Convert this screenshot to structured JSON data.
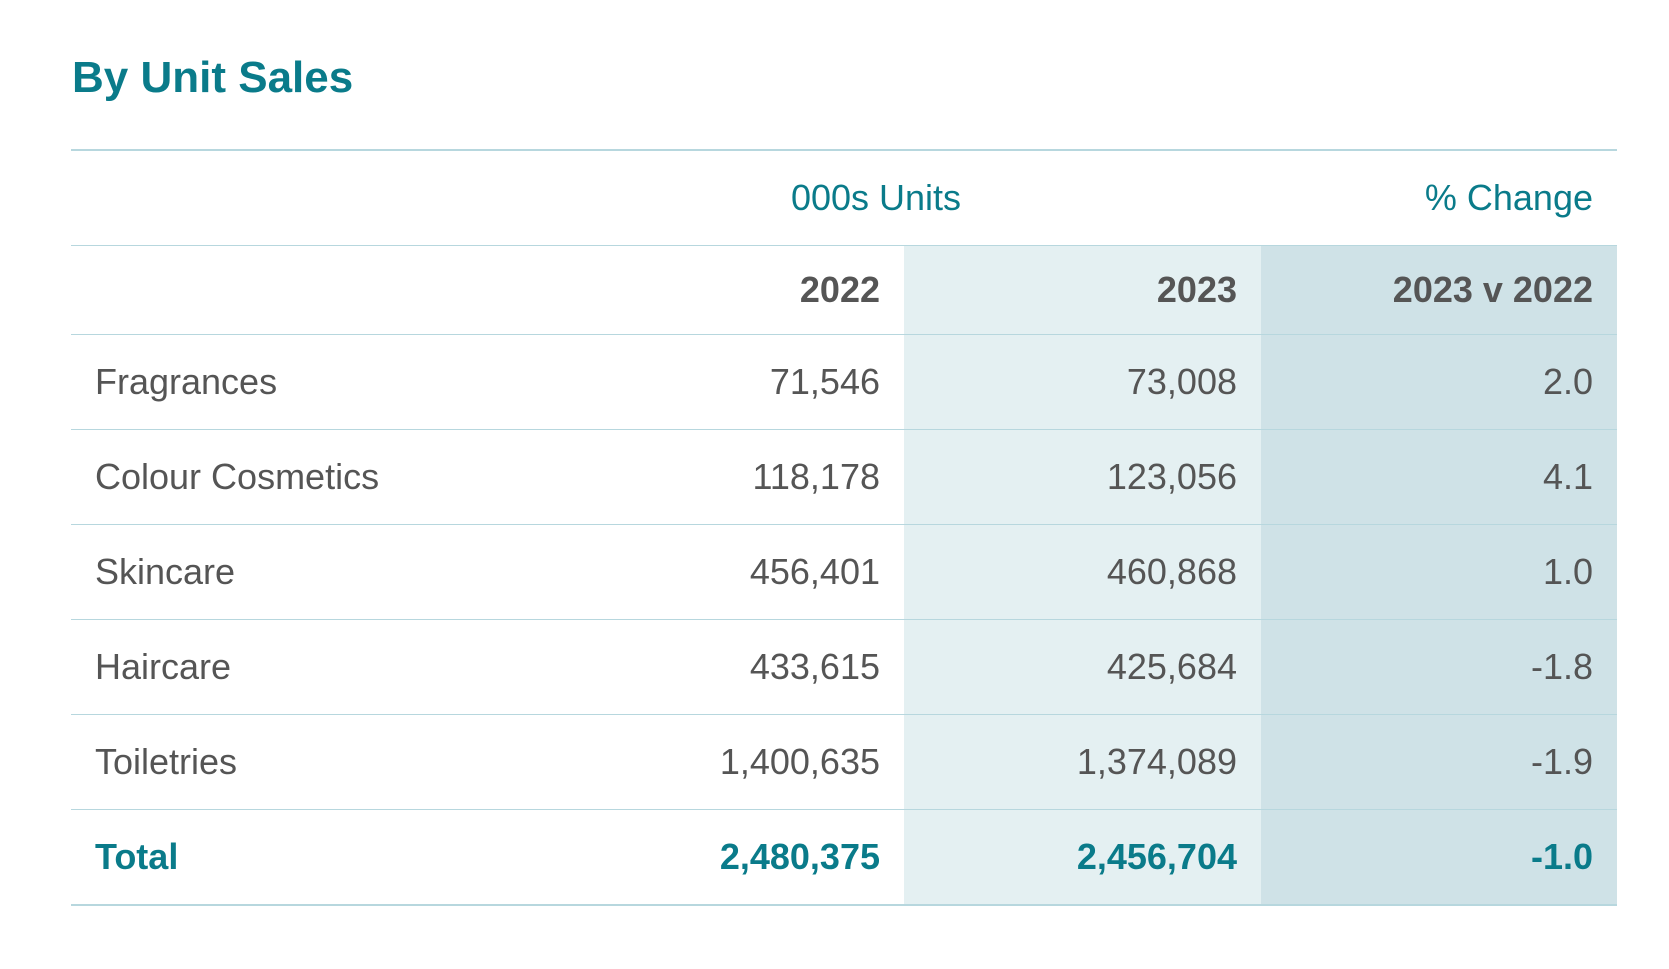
{
  "title": "By Unit Sales",
  "table": {
    "group_headers": {
      "units": "000s Units",
      "change": "% Change"
    },
    "columns": [
      "2022",
      "2023",
      "2023 v 2022"
    ],
    "rows": [
      {
        "label": "Fragrances",
        "y2022": "71,546",
        "y2023": "73,008",
        "change": "2.0"
      },
      {
        "label": "Colour Cosmetics",
        "y2022": "118,178",
        "y2023": "123,056",
        "change": "4.1"
      },
      {
        "label": "Skincare",
        "y2022": "456,401",
        "y2023": "460,868",
        "change": "1.0"
      },
      {
        "label": "Haircare",
        "y2022": "433,615",
        "y2023": "425,684",
        "change": "-1.8"
      },
      {
        "label": "Toiletries",
        "y2022": "1,400,635",
        "y2023": "1,374,089",
        "change": "-1.9"
      }
    ],
    "total": {
      "label": "Total",
      "y2022": "2,480,375",
      "y2023": "2,456,704",
      "change": "-1.0"
    }
  },
  "colors": {
    "accent": "#0a7b8a",
    "text": "#555555",
    "rule": "#b7d7de",
    "shade_2023": "#e4f0f2",
    "shade_change": "#cfe2e7"
  }
}
